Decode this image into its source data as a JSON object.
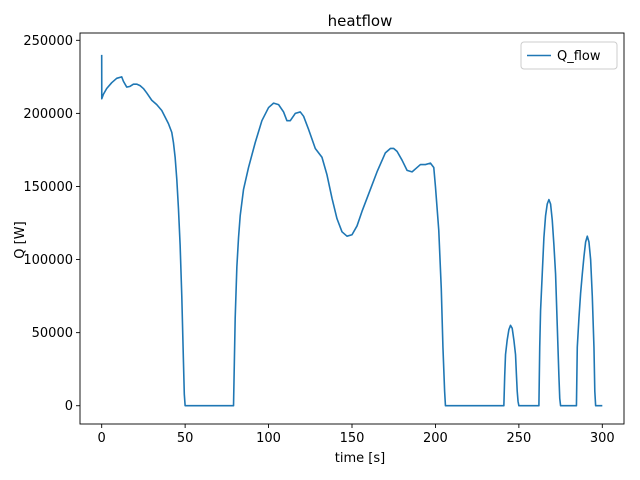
{
  "chart_data": {
    "type": "line",
    "title": "heatflow",
    "xlabel": "time [s]",
    "ylabel": "Q [W]",
    "xlim": [
      -13,
      313
    ],
    "ylim": [
      -12500,
      255000
    ],
    "xticks": [
      0,
      50,
      100,
      150,
      200,
      250,
      300
    ],
    "yticks": [
      0,
      50000,
      100000,
      150000,
      200000,
      250000
    ],
    "grid": false,
    "legend_position": "top-right",
    "series": [
      {
        "name": "Q_flow",
        "color": "#1f77b4",
        "x": [
          0,
          0.05,
          1,
          3,
          6,
          9,
          12,
          13,
          15,
          17,
          19,
          21,
          23,
          25,
          27,
          30,
          33,
          36,
          40,
          42,
          43,
          44,
          45,
          46,
          47,
          48,
          49,
          49.5,
          50,
          60,
          70,
          79,
          79.5,
          80,
          81,
          82,
          83,
          85,
          88,
          92,
          96,
          100,
          103,
          106,
          109,
          111,
          113,
          116,
          119,
          121,
          124,
          128,
          132,
          135,
          138,
          141,
          144,
          147,
          150,
          153,
          156,
          160,
          165,
          170,
          173,
          175,
          177,
          180,
          183,
          186,
          188,
          191,
          194,
          197,
          199,
          200,
          202,
          203.5,
          204.5,
          205.5,
          206,
          210,
          220,
          230,
          241,
          241.5,
          242,
          243,
          244,
          245,
          246,
          247,
          248,
          248.5,
          249,
          249.5,
          250,
          255,
          262,
          262.5,
          263,
          264,
          265,
          266,
          267,
          268,
          269,
          270,
          271,
          272,
          273,
          274,
          274.5,
          275,
          280,
          284.5,
          285,
          286,
          287,
          288,
          289,
          290,
          291,
          292,
          293,
          294,
          295,
          295.5,
          296,
          298,
          300
        ],
        "y": [
          240000,
          210000,
          213000,
          217000,
          221000,
          224000,
          225000,
          222000,
          218000,
          218500,
          220000,
          220000,
          219000,
          217000,
          214000,
          209000,
          206000,
          202000,
          193000,
          187000,
          180000,
          170000,
          155000,
          135000,
          110000,
          75000,
          30000,
          8000,
          0,
          0,
          0,
          0,
          30000,
          60000,
          95000,
          115000,
          130000,
          148000,
          163000,
          180000,
          195000,
          204000,
          207000,
          206000,
          201000,
          195000,
          195000,
          200000,
          201000,
          198000,
          189000,
          176000,
          170000,
          158000,
          142000,
          128000,
          119000,
          116000,
          117000,
          123000,
          133000,
          145000,
          160000,
          173000,
          176000,
          176000,
          174000,
          168000,
          161000,
          160000,
          162000,
          165000,
          165000,
          166000,
          163000,
          150000,
          120000,
          80000,
          40000,
          10000,
          0,
          0,
          0,
          0,
          0,
          20000,
          35000,
          45000,
          52000,
          55000,
          53000,
          45000,
          35000,
          22000,
          10000,
          3000,
          0,
          0,
          0,
          40000,
          65000,
          90000,
          115000,
          130000,
          138000,
          141000,
          138000,
          127000,
          110000,
          90000,
          55000,
          20000,
          5000,
          0,
          0,
          0,
          40000,
          60000,
          77000,
          90000,
          102000,
          112000,
          116000,
          112000,
          100000,
          75000,
          40000,
          10000,
          0,
          0,
          0
        ]
      }
    ]
  }
}
